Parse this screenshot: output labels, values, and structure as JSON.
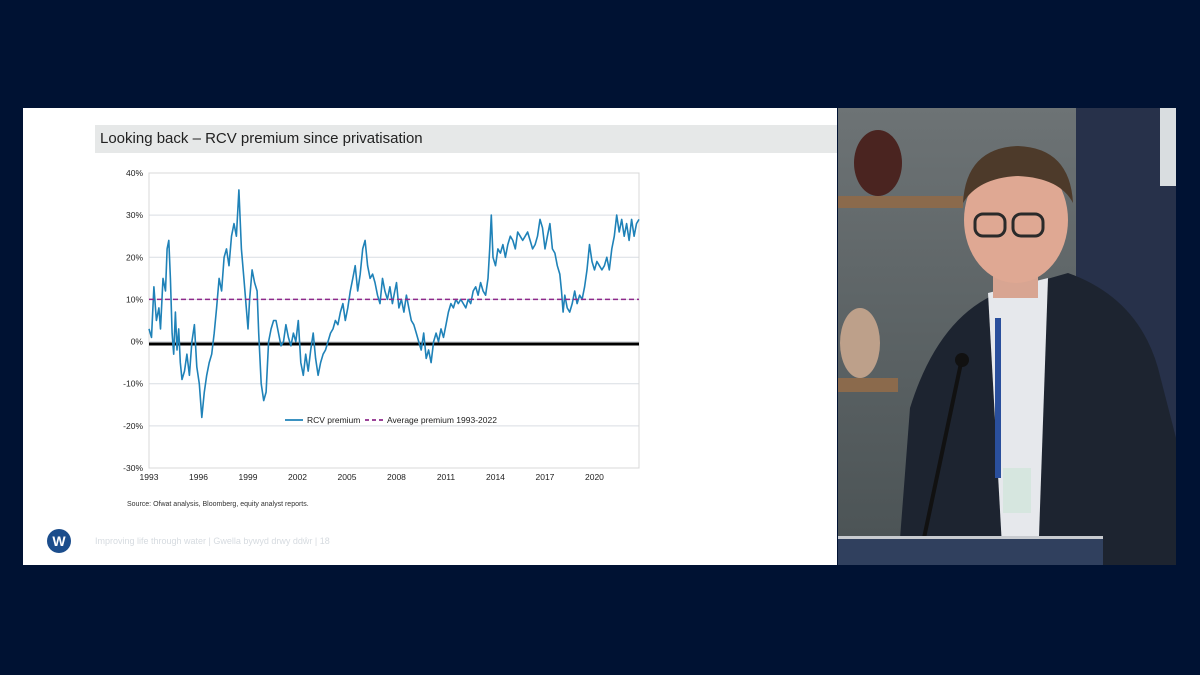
{
  "slide": {
    "title": "Looking back – RCV premium since privatisation",
    "source": "Source: Ofwat analysis, Bloomberg, equity analyst reports.",
    "logo_letter": "W",
    "footer": "Improving life through water  |  Gwella bywyd drwy ddŵr  |  18"
  },
  "chart_data": {
    "type": "line",
    "title": "",
    "xlabel": "",
    "ylabel": "",
    "x_ticks": [
      "1993",
      "1996",
      "1999",
      "2002",
      "2005",
      "2008",
      "2011",
      "2014",
      "2017",
      "2020"
    ],
    "y_ticks": [
      "40%",
      "30%",
      "20%",
      "10%",
      "0%",
      "-10%",
      "-20%",
      "-30%"
    ],
    "xlim": [
      1993,
      2022.7
    ],
    "ylim": [
      -30,
      40
    ],
    "grid": true,
    "legend_position": "lower-center-inside",
    "series": [
      {
        "name": "RCV premium",
        "color": "#1f82b8",
        "points": [
          [
            1993.0,
            3
          ],
          [
            1993.15,
            1
          ],
          [
            1993.3,
            13
          ],
          [
            1993.45,
            5
          ],
          [
            1993.6,
            8
          ],
          [
            1993.7,
            3
          ],
          [
            1993.85,
            15
          ],
          [
            1994.0,
            12
          ],
          [
            1994.1,
            22
          ],
          [
            1994.2,
            24
          ],
          [
            1994.3,
            15
          ],
          [
            1994.4,
            2
          ],
          [
            1994.5,
            -3
          ],
          [
            1994.6,
            7
          ],
          [
            1994.7,
            -2
          ],
          [
            1994.8,
            3
          ],
          [
            1994.9,
            -5
          ],
          [
            1995.0,
            -9
          ],
          [
            1995.15,
            -7
          ],
          [
            1995.3,
            -3
          ],
          [
            1995.45,
            -8
          ],
          [
            1995.6,
            0
          ],
          [
            1995.75,
            4
          ],
          [
            1995.9,
            -6
          ],
          [
            1996.05,
            -10
          ],
          [
            1996.2,
            -18
          ],
          [
            1996.35,
            -12
          ],
          [
            1996.5,
            -8
          ],
          [
            1996.65,
            -5
          ],
          [
            1996.8,
            -3
          ],
          [
            1996.95,
            2
          ],
          [
            1997.1,
            8
          ],
          [
            1997.25,
            15
          ],
          [
            1997.4,
            12
          ],
          [
            1997.55,
            20
          ],
          [
            1997.7,
            22
          ],
          [
            1997.85,
            18
          ],
          [
            1998.0,
            25
          ],
          [
            1998.15,
            28
          ],
          [
            1998.3,
            25
          ],
          [
            1998.45,
            36
          ],
          [
            1998.6,
            22
          ],
          [
            1998.75,
            15
          ],
          [
            1998.9,
            8
          ],
          [
            1999.0,
            3
          ],
          [
            1999.1,
            10
          ],
          [
            1999.25,
            17
          ],
          [
            1999.4,
            14
          ],
          [
            1999.55,
            12
          ],
          [
            1999.65,
            2
          ],
          [
            1999.8,
            -10
          ],
          [
            1999.95,
            -14
          ],
          [
            2000.1,
            -12
          ],
          [
            2000.25,
            0
          ],
          [
            2000.4,
            3
          ],
          [
            2000.55,
            5
          ],
          [
            2000.7,
            5
          ],
          [
            2000.85,
            2
          ],
          [
            2001.0,
            -1
          ],
          [
            2001.15,
            0
          ],
          [
            2001.3,
            4
          ],
          [
            2001.45,
            1
          ],
          [
            2001.6,
            -1
          ],
          [
            2001.75,
            2
          ],
          [
            2001.9,
            0
          ],
          [
            2002.05,
            5
          ],
          [
            2002.2,
            -5
          ],
          [
            2002.35,
            -8
          ],
          [
            2002.5,
            -3
          ],
          [
            2002.65,
            -7
          ],
          [
            2002.8,
            -2
          ],
          [
            2002.95,
            2
          ],
          [
            2003.1,
            -4
          ],
          [
            2003.25,
            -8
          ],
          [
            2003.4,
            -5
          ],
          [
            2003.55,
            -3
          ],
          [
            2003.7,
            -2
          ],
          [
            2003.85,
            0
          ],
          [
            2004.0,
            2
          ],
          [
            2004.15,
            3
          ],
          [
            2004.3,
            5
          ],
          [
            2004.45,
            4
          ],
          [
            2004.6,
            7
          ],
          [
            2004.75,
            9
          ],
          [
            2004.9,
            5
          ],
          [
            2005.05,
            8
          ],
          [
            2005.2,
            12
          ],
          [
            2005.35,
            15
          ],
          [
            2005.5,
            18
          ],
          [
            2005.65,
            12
          ],
          [
            2005.8,
            16
          ],
          [
            2005.95,
            22
          ],
          [
            2006.1,
            24
          ],
          [
            2006.25,
            18
          ],
          [
            2006.4,
            15
          ],
          [
            2006.55,
            16
          ],
          [
            2006.7,
            14
          ],
          [
            2006.85,
            11
          ],
          [
            2007.0,
            9
          ],
          [
            2007.15,
            15
          ],
          [
            2007.3,
            12
          ],
          [
            2007.45,
            10
          ],
          [
            2007.6,
            13
          ],
          [
            2007.75,
            9
          ],
          [
            2007.9,
            12
          ],
          [
            2008.0,
            14
          ],
          [
            2008.15,
            8
          ],
          [
            2008.3,
            10
          ],
          [
            2008.45,
            7
          ],
          [
            2008.6,
            11
          ],
          [
            2008.75,
            8
          ],
          [
            2008.9,
            5
          ],
          [
            2009.05,
            4
          ],
          [
            2009.2,
            2
          ],
          [
            2009.35,
            0
          ],
          [
            2009.5,
            -2
          ],
          [
            2009.65,
            2
          ],
          [
            2009.8,
            -4
          ],
          [
            2009.95,
            -2
          ],
          [
            2010.1,
            -5
          ],
          [
            2010.25,
            0
          ],
          [
            2010.4,
            2
          ],
          [
            2010.55,
            0
          ],
          [
            2010.7,
            3
          ],
          [
            2010.85,
            1
          ],
          [
            2011.0,
            4
          ],
          [
            2011.15,
            7
          ],
          [
            2011.3,
            9
          ],
          [
            2011.45,
            8
          ],
          [
            2011.6,
            10
          ],
          [
            2011.75,
            9
          ],
          [
            2011.9,
            10
          ],
          [
            2012.05,
            9
          ],
          [
            2012.2,
            8
          ],
          [
            2012.35,
            10
          ],
          [
            2012.5,
            9
          ],
          [
            2012.65,
            12
          ],
          [
            2012.8,
            13
          ],
          [
            2012.95,
            11
          ],
          [
            2013.1,
            14
          ],
          [
            2013.25,
            12
          ],
          [
            2013.4,
            11
          ],
          [
            2013.55,
            15
          ],
          [
            2013.65,
            22
          ],
          [
            2013.75,
            30
          ],
          [
            2013.85,
            20
          ],
          [
            2014.0,
            18
          ],
          [
            2014.15,
            22
          ],
          [
            2014.3,
            21
          ],
          [
            2014.45,
            23
          ],
          [
            2014.6,
            20
          ],
          [
            2014.75,
            23
          ],
          [
            2014.9,
            25
          ],
          [
            2015.05,
            24
          ],
          [
            2015.2,
            22
          ],
          [
            2015.35,
            26
          ],
          [
            2015.5,
            25
          ],
          [
            2015.65,
            24
          ],
          [
            2015.8,
            25
          ],
          [
            2015.95,
            26
          ],
          [
            2016.1,
            24
          ],
          [
            2016.25,
            22
          ],
          [
            2016.4,
            23
          ],
          [
            2016.55,
            25
          ],
          [
            2016.7,
            29
          ],
          [
            2016.85,
            27
          ],
          [
            2017.0,
            22
          ],
          [
            2017.15,
            25
          ],
          [
            2017.3,
            28
          ],
          [
            2017.45,
            22
          ],
          [
            2017.6,
            21
          ],
          [
            2017.75,
            18
          ],
          [
            2017.9,
            16
          ],
          [
            2018.0,
            12
          ],
          [
            2018.1,
            7
          ],
          [
            2018.2,
            11
          ],
          [
            2018.35,
            8
          ],
          [
            2018.5,
            7
          ],
          [
            2018.65,
            9
          ],
          [
            2018.8,
            12
          ],
          [
            2018.95,
            9
          ],
          [
            2019.1,
            11
          ],
          [
            2019.25,
            10
          ],
          [
            2019.4,
            13
          ],
          [
            2019.55,
            17
          ],
          [
            2019.7,
            23
          ],
          [
            2019.85,
            19
          ],
          [
            2020.0,
            17
          ],
          [
            2020.15,
            19
          ],
          [
            2020.3,
            18
          ],
          [
            2020.45,
            17
          ],
          [
            2020.6,
            18
          ],
          [
            2020.75,
            20
          ],
          [
            2020.9,
            17
          ],
          [
            2021.05,
            22
          ],
          [
            2021.2,
            25
          ],
          [
            2021.35,
            30
          ],
          [
            2021.5,
            26
          ],
          [
            2021.65,
            29
          ],
          [
            2021.8,
            25
          ],
          [
            2021.95,
            28
          ],
          [
            2022.1,
            24
          ],
          [
            2022.25,
            29
          ],
          [
            2022.4,
            25
          ],
          [
            2022.55,
            28
          ],
          [
            2022.7,
            29
          ]
        ]
      },
      {
        "name": "Average premium 1993-2022",
        "color": "#8e2a8b",
        "dashed": true,
        "points": [
          [
            1993.0,
            10
          ],
          [
            2022.7,
            10
          ]
        ]
      }
    ]
  }
}
